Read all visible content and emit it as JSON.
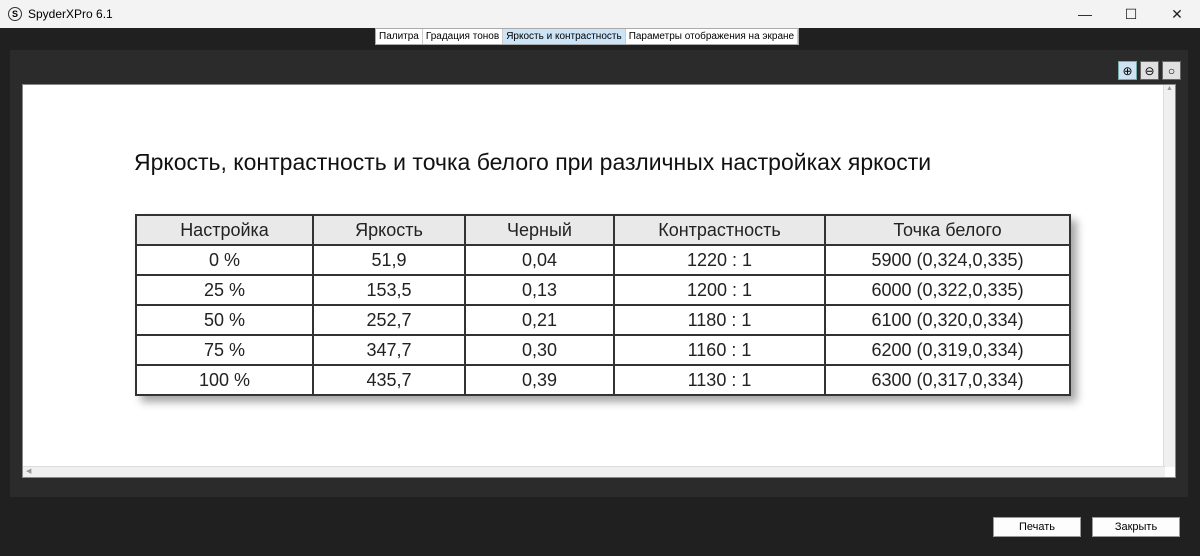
{
  "window": {
    "title": "SpyderXPro 6.1",
    "logo": "S"
  },
  "tabs": [
    {
      "label": "Палитра"
    },
    {
      "label": "Градация тонов"
    },
    {
      "label": "Яркость и контрастность",
      "active": true
    },
    {
      "label": "Параметры отображения на экране"
    }
  ],
  "zoom": {
    "icons": [
      "zoom-in-icon",
      "zoom-out-icon",
      "zoom-fit-icon"
    ]
  },
  "report": {
    "title": "Яркость, контрастность и точка белого при различных настройках яркости",
    "headers": [
      "Настройка",
      "Яркость",
      "Черный",
      "Контрастность",
      "Точка белого"
    ],
    "rows": [
      [
        "0 %",
        "51,9",
        "0,04",
        "1220 : 1",
        "5900 (0,324,0,335)"
      ],
      [
        "25 %",
        "153,5",
        "0,13",
        "1200 : 1",
        "6000 (0,322,0,335)"
      ],
      [
        "50 %",
        "252,7",
        "0,21",
        "1180 : 1",
        "6100 (0,320,0,334)"
      ],
      [
        "75 %",
        "347,7",
        "0,30",
        "1160 : 1",
        "6200 (0,319,0,334)"
      ],
      [
        "100 %",
        "435,7",
        "0,39",
        "1130 : 1",
        "6300 (0,317,0,334)"
      ]
    ]
  },
  "buttons": {
    "print": "Печать",
    "close": "Закрыть"
  }
}
